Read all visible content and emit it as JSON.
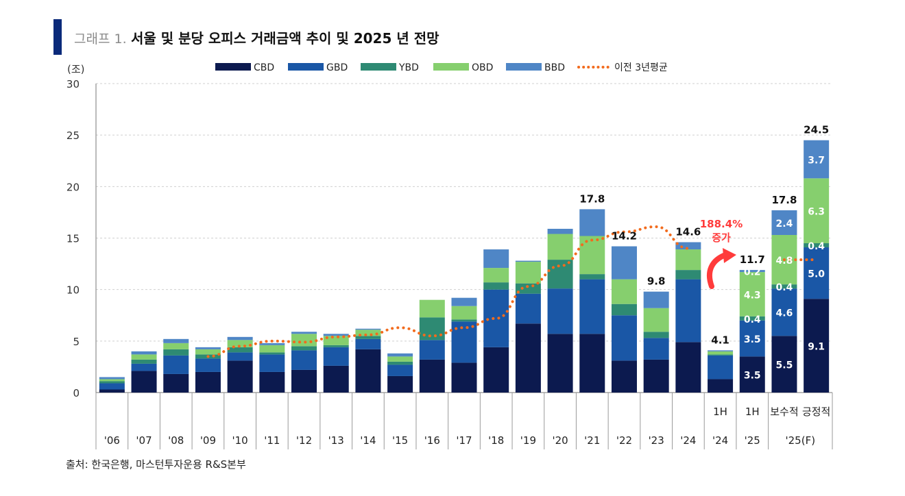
{
  "header": {
    "prefix": "그래프 1.",
    "title": "서울 및 분당 오피스 거래금액 추이 및 2025 년 전망"
  },
  "source": "출처: 한국은행, 마스턴투자운용 R&S본부",
  "annotation": {
    "text_line1": "188.4%",
    "text_line2": "증가",
    "color": "#ff3b3b"
  },
  "chart_data": {
    "type": "bar",
    "stacked": true,
    "ylabel": "(조)",
    "ylim": [
      0,
      30
    ],
    "yticks": [
      0,
      5,
      10,
      15,
      20,
      25,
      30
    ],
    "grid": true,
    "legend_position": "top",
    "categories": [
      "'06",
      "'07",
      "'08",
      "'09",
      "'10",
      "'11",
      "'12",
      "'13",
      "'14",
      "'15",
      "'16",
      "'17",
      "'18",
      "'19",
      "'20",
      "'21",
      "'22",
      "'23",
      "'24",
      "1H '24",
      "1H '25",
      "보수적 '25(F)",
      "긍정적 '25(F)"
    ],
    "x_labels_top": [
      "",
      "",
      "",
      "",
      "",
      "",
      "",
      "",
      "",
      "",
      "",
      "",
      "",
      "",
      "",
      "",
      "",
      "",
      "",
      "1H",
      "1H",
      "보수적",
      "긍정적"
    ],
    "x_labels_bottom": [
      "'06",
      "'07",
      "'08",
      "'09",
      "'10",
      "'11",
      "'12",
      "'13",
      "'14",
      "'15",
      "'16",
      "'17",
      "'18",
      "'19",
      "'20",
      "'21",
      "'22",
      "'23",
      "'24",
      "'24",
      "'25",
      "'25(F)",
      ""
    ],
    "series": [
      {
        "name": "CBD",
        "color": "#0c1a4f",
        "values": [
          0.3,
          2.1,
          1.8,
          2.0,
          3.1,
          2.0,
          2.2,
          2.6,
          4.2,
          1.6,
          3.2,
          2.9,
          4.4,
          6.7,
          5.7,
          5.7,
          3.1,
          3.2,
          4.9,
          1.3,
          3.5,
          5.5,
          9.1
        ]
      },
      {
        "name": "GBD",
        "color": "#1a57a6",
        "values": [
          0.6,
          0.7,
          1.8,
          1.3,
          0.8,
          1.7,
          1.9,
          1.8,
          1.0,
          1.1,
          1.9,
          4.0,
          5.6,
          2.9,
          4.4,
          5.3,
          4.4,
          2.1,
          6.1,
          2.3,
          3.5,
          4.6,
          5.0
        ]
      },
      {
        "name": "YBD",
        "color": "#2e8a73",
        "values": [
          0.2,
          0.4,
          0.6,
          0.4,
          0.5,
          0.2,
          0.4,
          0.2,
          0.3,
          0.3,
          2.2,
          0.2,
          0.7,
          1.0,
          2.8,
          0.5,
          1.1,
          0.6,
          0.9,
          0.1,
          0.4,
          0.4,
          0.4
        ]
      },
      {
        "name": "OBD",
        "color": "#86cf6e",
        "values": [
          0.2,
          0.5,
          0.6,
          0.5,
          0.7,
          0.7,
          1.2,
          0.9,
          0.6,
          0.5,
          1.7,
          1.3,
          1.4,
          2.1,
          2.5,
          3.7,
          2.4,
          2.3,
          2.0,
          0.3,
          4.3,
          4.8,
          6.3
        ]
      },
      {
        "name": "BBD",
        "color": "#4f86c6",
        "values": [
          0.2,
          0.3,
          0.4,
          0.2,
          0.3,
          0.2,
          0.2,
          0.2,
          0.1,
          0.3,
          0.0,
          0.8,
          1.8,
          0.1,
          0.5,
          2.6,
          3.2,
          1.6,
          0.7,
          0.1,
          0.2,
          2.4,
          3.7
        ]
      }
    ],
    "data_labels": {
      "totals": [
        {
          "index": 15,
          "text": "17.8"
        },
        {
          "index": 16,
          "text": "14.2"
        },
        {
          "index": 17,
          "text": "9.8"
        },
        {
          "index": 18,
          "text": "14.6"
        },
        {
          "index": 19,
          "text": "4.1"
        },
        {
          "index": 20,
          "text": "11.7"
        },
        {
          "index": 21,
          "text": "17.8"
        },
        {
          "index": 22,
          "text": "24.5"
        }
      ],
      "segments": [
        {
          "index": 20,
          "series": 0,
          "text": "3.5"
        },
        {
          "index": 20,
          "series": 1,
          "text": "3.5"
        },
        {
          "index": 20,
          "series": 2,
          "text": "0.4"
        },
        {
          "index": 20,
          "series": 3,
          "text": "4.3"
        },
        {
          "index": 20,
          "series": 4,
          "text": "0.2"
        },
        {
          "index": 21,
          "series": 0,
          "text": "5.5"
        },
        {
          "index": 21,
          "series": 1,
          "text": "4.6"
        },
        {
          "index": 21,
          "series": 2,
          "text": "0.4"
        },
        {
          "index": 21,
          "series": 3,
          "text": "4.8"
        },
        {
          "index": 21,
          "series": 4,
          "text": "2.4"
        },
        {
          "index": 22,
          "series": 0,
          "text": "9.1"
        },
        {
          "index": 22,
          "series": 1,
          "text": "5.0"
        },
        {
          "index": 22,
          "series": 2,
          "text": "0.4"
        },
        {
          "index": 22,
          "series": 3,
          "text": "6.3"
        },
        {
          "index": 22,
          "series": 4,
          "text": "3.7"
        }
      ]
    },
    "avg_line": {
      "name": "이전 3년평균",
      "color": "#f26b1d",
      "points": [
        {
          "x": 3,
          "y": 3.5
        },
        {
          "x": 4,
          "y": 4.5
        },
        {
          "x": 5,
          "y": 5.0
        },
        {
          "x": 6,
          "y": 4.9
        },
        {
          "x": 7,
          "y": 5.4
        },
        {
          "x": 8,
          "y": 5.6
        },
        {
          "x": 9,
          "y": 6.3
        },
        {
          "x": 10,
          "y": 5.5
        },
        {
          "x": 11,
          "y": 6.3
        },
        {
          "x": 12,
          "y": 7.2
        },
        {
          "x": 13,
          "y": 10.3
        },
        {
          "x": 14,
          "y": 12.3
        },
        {
          "x": 15,
          "y": 14.8
        },
        {
          "x": 16,
          "y": 15.6
        },
        {
          "x": 17,
          "y": 16.1
        },
        {
          "x": 18,
          "y": 14.0
        },
        {
          "x": 21,
          "y": 12.9
        },
        {
          "x": 22,
          "y": 12.9
        }
      ]
    }
  }
}
